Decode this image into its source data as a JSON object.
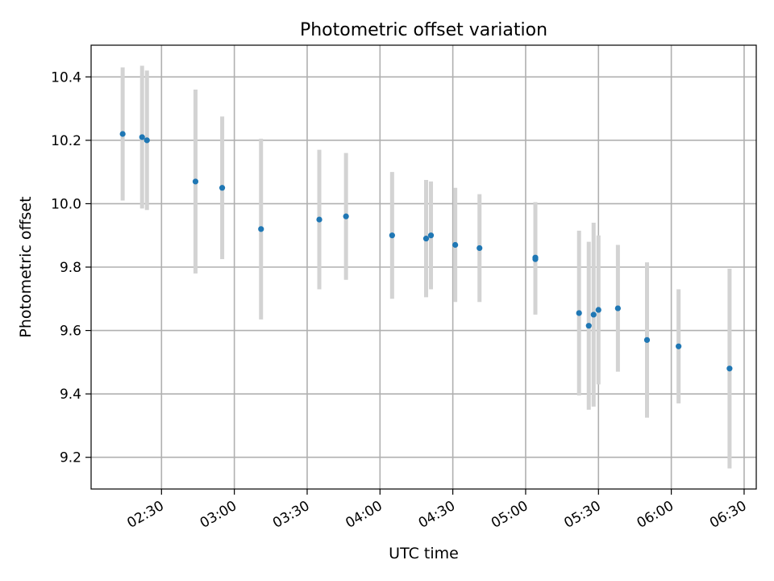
{
  "chart_data": {
    "type": "scatter",
    "title": "Photometric offset variation",
    "xlabel": "UTC time",
    "ylabel": "Photometric offset",
    "grid": true,
    "legend": false,
    "xlim": [
      "02:01",
      "06:35"
    ],
    "ylim": [
      9.1,
      10.5
    ],
    "x_ticks": [
      "02:30",
      "03:00",
      "03:30",
      "04:00",
      "04:30",
      "05:00",
      "05:30",
      "06:00",
      "06:30"
    ],
    "y_ticks": [
      "9.2",
      "9.4",
      "9.6",
      "9.8",
      "10.0",
      "10.2",
      "10.4"
    ],
    "colors": {
      "point": "#1f77b4",
      "errorbar": "#d3d3d3",
      "grid": "#b0b0b0"
    },
    "points": [
      {
        "x": "02:14",
        "y": 10.22,
        "yerr": 0.21
      },
      {
        "x": "02:22",
        "y": 10.21,
        "yerr": 0.225
      },
      {
        "x": "02:24",
        "y": 10.2,
        "yerr": 0.22
      },
      {
        "x": "02:44",
        "y": 10.07,
        "yerr": 0.29
      },
      {
        "x": "02:55",
        "y": 10.05,
        "yerr": 0.225
      },
      {
        "x": "03:11",
        "y": 9.92,
        "yerr": 0.285
      },
      {
        "x": "03:35",
        "y": 9.95,
        "yerr": 0.22
      },
      {
        "x": "03:46",
        "y": 9.96,
        "yerr": 0.2
      },
      {
        "x": "04:05",
        "y": 9.9,
        "yerr": 0.2
      },
      {
        "x": "04:19",
        "y": 9.89,
        "yerr": 0.185
      },
      {
        "x": "04:21",
        "y": 9.9,
        "yerr": 0.17
      },
      {
        "x": "04:31",
        "y": 9.87,
        "yerr": 0.18
      },
      {
        "x": "04:41",
        "y": 9.86,
        "yerr": 0.17
      },
      {
        "x": "05:04",
        "y": 9.83,
        "yerr": 0.175
      },
      {
        "x": "05:04",
        "y": 9.825,
        "yerr": 0.175
      },
      {
        "x": "05:22",
        "y": 9.655,
        "yerr": 0.26
      },
      {
        "x": "05:26",
        "y": 9.615,
        "yerr": 0.265
      },
      {
        "x": "05:28",
        "y": 9.65,
        "yerr": 0.29
      },
      {
        "x": "05:30",
        "y": 9.665,
        "yerr": 0.235
      },
      {
        "x": "05:38",
        "y": 9.67,
        "yerr": 0.2
      },
      {
        "x": "05:50",
        "y": 9.57,
        "yerr": 0.245
      },
      {
        "x": "06:03",
        "y": 9.55,
        "yerr": 0.18
      },
      {
        "x": "06:24",
        "y": 9.48,
        "yerr": 0.315
      }
    ]
  }
}
